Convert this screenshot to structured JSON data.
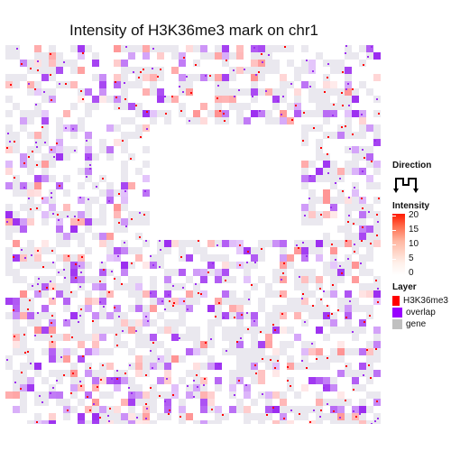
{
  "chart_data": {
    "type": "heatmap",
    "title": "Intensity of H3K36me3 mark on chr1",
    "legend": {
      "direction_title": "Direction",
      "intensity_title": "Intensity",
      "intensity_ticks": [
        "20",
        "15",
        "10",
        "5",
        "0"
      ],
      "intensity_range": [
        0,
        20
      ],
      "layer_title": "Layer",
      "layers": [
        {
          "name": "H3K36me3",
          "color": "#ff0000"
        },
        {
          "name": "overlap",
          "color": "#9900ff"
        },
        {
          "name": "gene",
          "color": "#c0c0c0"
        }
      ]
    },
    "colors": {
      "low": "#ffffff",
      "high": "#ff0000",
      "overlap": "#9b2cf0",
      "gene": "#e6e4ec"
    }
  }
}
